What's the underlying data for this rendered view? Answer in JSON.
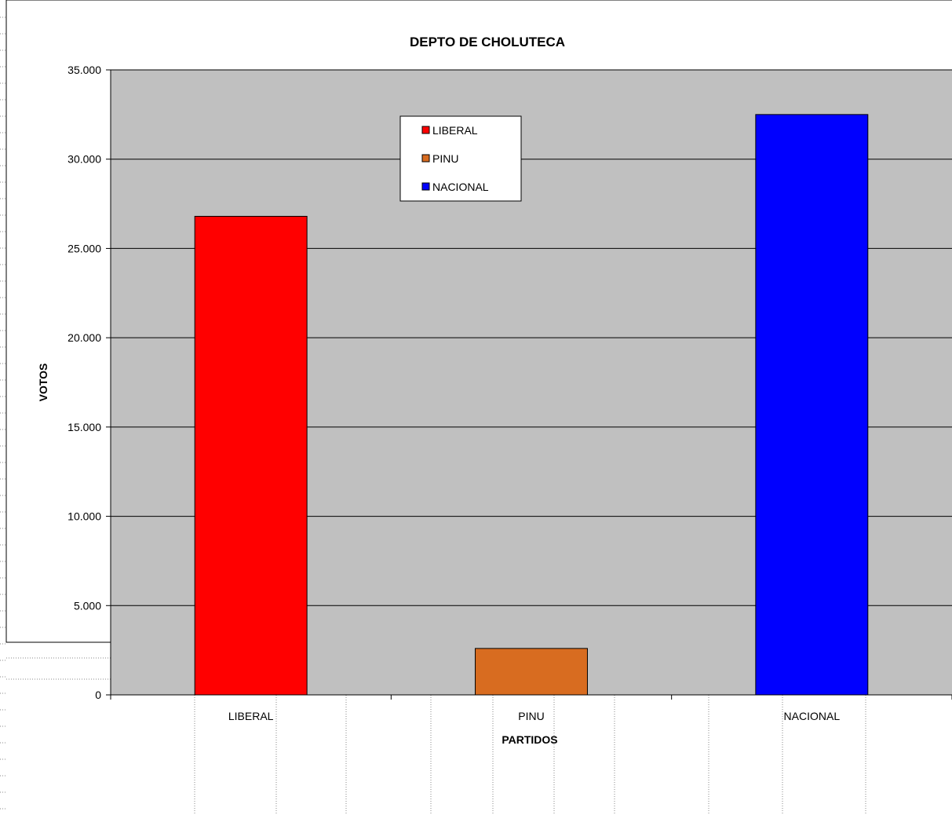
{
  "chart_data": {
    "type": "bar",
    "title": "DEPTO DE CHOLUTECA",
    "xlabel": "PARTIDOS",
    "ylabel": "VOTOS",
    "categories": [
      "LIBERAL",
      "PINU",
      "NACIONAL"
    ],
    "values": [
      26800,
      2600,
      32500
    ],
    "colors": [
      "#ff0000",
      "#d86c20",
      "#0000ff"
    ],
    "plot_background": "#c0c0c0",
    "ylim": [
      0,
      35000
    ],
    "yticks": [
      0,
      5000,
      10000,
      15000,
      20000,
      25000,
      30000,
      35000
    ],
    "ytick_labels": [
      "0",
      "5.000",
      "10.000",
      "15.000",
      "20.000",
      "25.000",
      "30.000",
      "35.000"
    ],
    "grid": true,
    "legend": {
      "placement": "top-center",
      "entries": [
        "LIBERAL",
        "PINU",
        "NACIONAL"
      ]
    }
  }
}
